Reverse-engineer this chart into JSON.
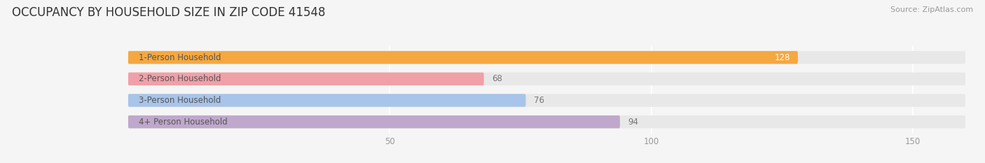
{
  "title": "OCCUPANCY BY HOUSEHOLD SIZE IN ZIP CODE 41548",
  "source": "Source: ZipAtlas.com",
  "categories": [
    "1-Person Household",
    "2-Person Household",
    "3-Person Household",
    "4+ Person Household"
  ],
  "values": [
    128,
    68,
    76,
    94
  ],
  "bar_colors": [
    "#F5A840",
    "#F0A0A8",
    "#A8C4E8",
    "#C0A8CC"
  ],
  "xlim_max": 160,
  "xticks": [
    50,
    100,
    150
  ],
  "background_color": "#F5F5F5",
  "bar_bg_color": "#E8E8E8",
  "title_fontsize": 12,
  "label_fontsize": 8.5,
  "value_fontsize": 8.5,
  "source_fontsize": 8,
  "bar_height": 0.6,
  "title_color": "#333333",
  "source_color": "#999999",
  "label_color": "#555555",
  "value_color_inside": "#FFFFFF",
  "value_color_outside": "#777777",
  "tick_color": "#999999",
  "grid_color": "#FFFFFF"
}
